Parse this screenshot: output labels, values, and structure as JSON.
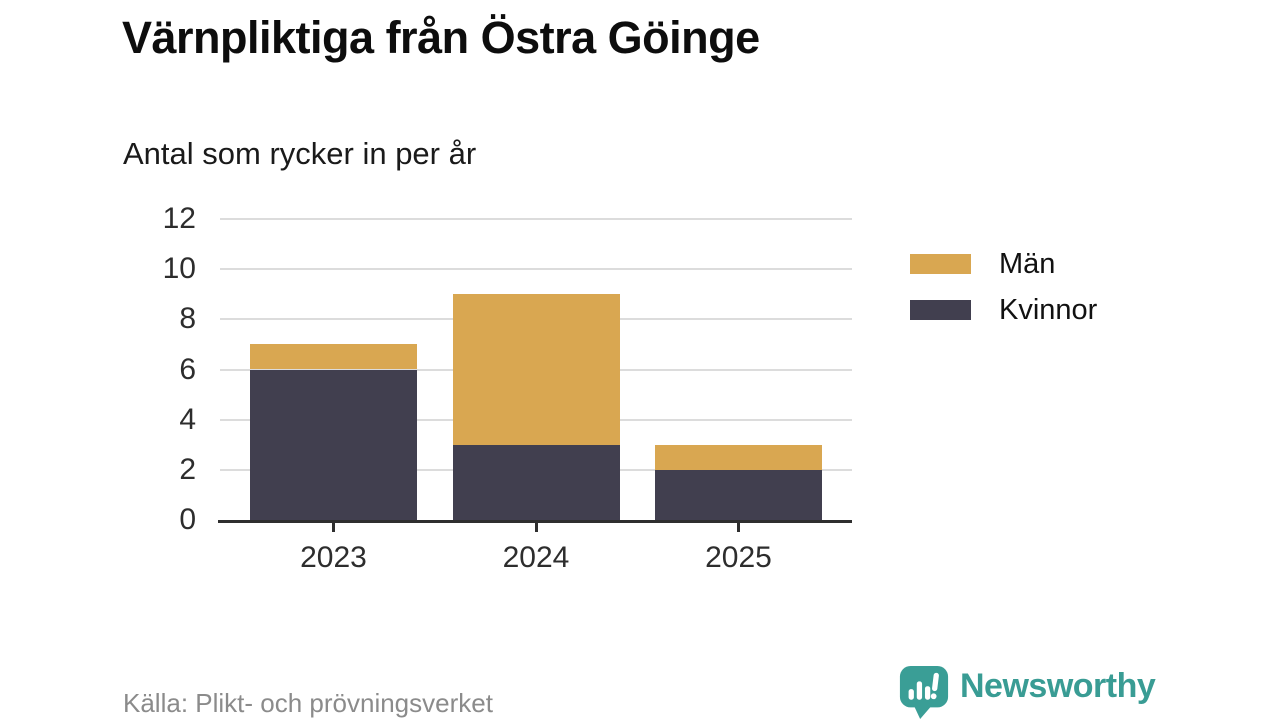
{
  "title": "Värnpliktiga från Östra Göinge",
  "subtitle": "Antal som rycker in per år",
  "source": "Källa: Plikt- och prövningsverket",
  "brand": {
    "name": "Newsworthy",
    "color": "#399c94"
  },
  "colors": {
    "men": "#d9a751",
    "women": "#413f4f",
    "grid": "#dcdcdc",
    "axis": "#2f2f2f",
    "tick_text": "#2d2d2d",
    "title_text": "#0d0d0d",
    "source_text": "#8b8b8b",
    "background": "#ffffff"
  },
  "chart_data": {
    "type": "bar",
    "stacked": true,
    "title": "Värnpliktiga från Östra Göinge",
    "subtitle": "Antal som rycker in per år",
    "categories": [
      "2023",
      "2024",
      "2025"
    ],
    "series": [
      {
        "name": "Män",
        "color": "#d9a751",
        "values": [
          1,
          6,
          1
        ]
      },
      {
        "name": "Kvinnor",
        "color": "#413f4f",
        "values": [
          6,
          3,
          2
        ]
      }
    ],
    "totals": [
      7,
      9,
      3
    ],
    "xlabel": "",
    "ylabel": "Antal som rycker in per år",
    "ylim": [
      0,
      12
    ],
    "yticks": [
      0,
      2,
      4,
      6,
      8,
      10,
      12
    ],
    "grid": true,
    "legend_position": "right"
  }
}
